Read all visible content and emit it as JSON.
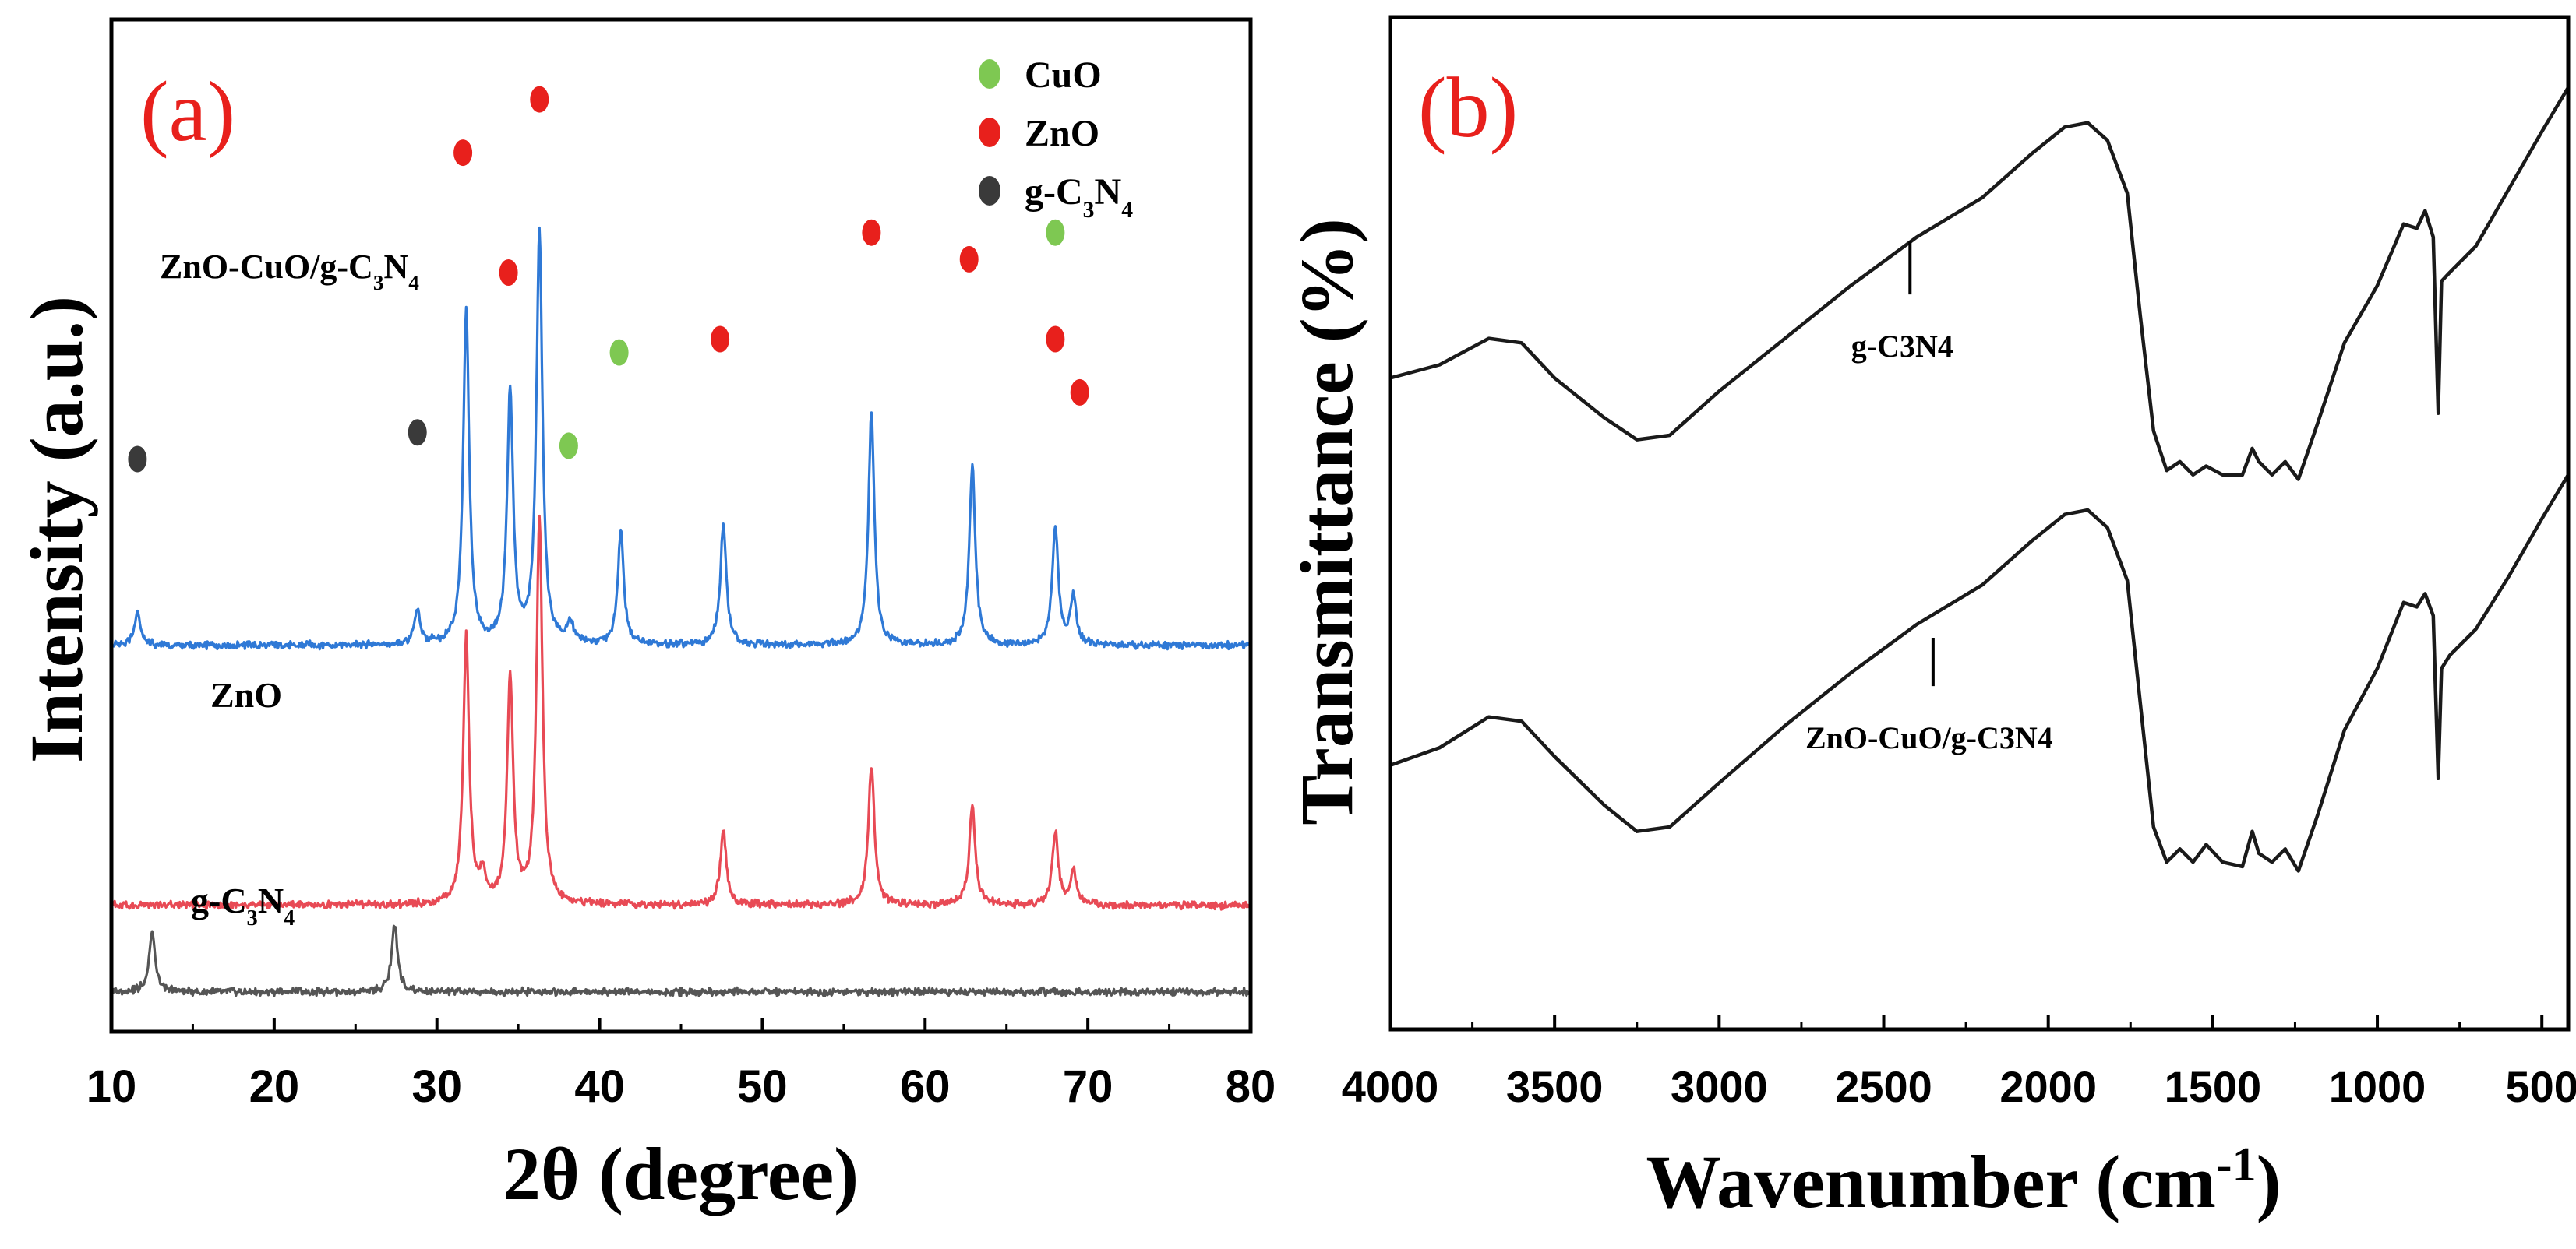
{
  "chart_data": [
    {
      "id": "a",
      "type": "line",
      "panel_label": "(a)",
      "xlabel_main": "2θ (degree)",
      "ylabel": "Intensity (a.u.)",
      "xlim": [
        10,
        80
      ],
      "xticks": [
        10,
        20,
        30,
        40,
        50,
        60,
        70,
        80
      ],
      "y_tick_labels_shown": false,
      "legend": {
        "position": "top-right",
        "entries": [
          {
            "label": "CuO",
            "color": "#7ec852"
          },
          {
            "label": "ZnO",
            "color": "#e8201c"
          },
          {
            "label": "g-C3N4",
            "color": "#3a3a3a",
            "label_main": "g-C",
            "sub1": "3",
            "mid": "N",
            "sub2": "4"
          }
        ]
      },
      "series": [
        {
          "name": "ZnO-CuO/g-C3N4",
          "label_parts": {
            "pre": "ZnO-CuO/g-C",
            "sub1": "3",
            "mid": "N",
            "sub2": "4"
          },
          "color": "#2f79d6",
          "baseline": 2.9,
          "peaks": [
            [
              11.6,
              0.25
            ],
            [
              28.8,
              0.25
            ],
            [
              31.8,
              2.5
            ],
            [
              34.5,
              1.9
            ],
            [
              36.3,
              3.1
            ],
            [
              38.2,
              0.15
            ],
            [
              41.3,
              0.85
            ],
            [
              47.6,
              0.9
            ],
            [
              56.7,
              1.75
            ],
            [
              62.9,
              1.35
            ],
            [
              68.0,
              0.9
            ],
            [
              69.1,
              0.35
            ]
          ],
          "markers": [
            {
              "x": 11.6,
              "y": 4.3,
              "phase": "g-C3N4"
            },
            {
              "x": 28.8,
              "y": 4.5,
              "phase": "g-C3N4"
            },
            {
              "x": 31.6,
              "y": 6.6,
              "phase": "ZnO"
            },
            {
              "x": 34.4,
              "y": 5.7,
              "phase": "ZnO"
            },
            {
              "x": 36.3,
              "y": 7.0,
              "phase": "ZnO"
            },
            {
              "x": 38.1,
              "y": 4.4,
              "phase": "CuO"
            },
            {
              "x": 41.2,
              "y": 5.1,
              "phase": "CuO"
            },
            {
              "x": 47.4,
              "y": 5.2,
              "phase": "ZnO"
            },
            {
              "x": 56.7,
              "y": 6.0,
              "phase": "ZnO"
            },
            {
              "x": 62.7,
              "y": 5.8,
              "phase": "ZnO"
            },
            {
              "x": 68.0,
              "y": 5.2,
              "phase": "ZnO"
            },
            {
              "x": 68.0,
              "y": 6.0,
              "phase": "CuO"
            },
            {
              "x": 69.5,
              "y": 4.8,
              "phase": "ZnO"
            }
          ]
        },
        {
          "name": "ZnO",
          "label_parts": {
            "pre": "ZnO",
            "sub1": "",
            "mid": "",
            "sub2": ""
          },
          "color": "#e84a55",
          "baseline": 0.95,
          "peaks": [
            [
              31.8,
              2.0
            ],
            [
              32.8,
              0.2
            ],
            [
              34.5,
              1.7
            ],
            [
              36.3,
              2.9
            ],
            [
              47.6,
              0.55
            ],
            [
              56.7,
              1.05
            ],
            [
              62.9,
              0.75
            ],
            [
              68.0,
              0.55
            ],
            [
              69.1,
              0.25
            ]
          ]
        },
        {
          "name": "g-C3N4",
          "label_parts": {
            "pre": "g-C",
            "sub1": "3",
            "mid": "N",
            "sub2": "4"
          },
          "color": "#555555",
          "baseline": 0.3,
          "peaks": [
            [
              12.5,
              0.45
            ],
            [
              27.4,
              0.5
            ]
          ]
        }
      ]
    },
    {
      "id": "b",
      "type": "line",
      "panel_label": "(b)",
      "xlabel_main": "Wavenumber (cm",
      "xlabel_sup": "-1",
      "xlabel_end": ")",
      "ylabel": "Transmittance (%)",
      "xlim": [
        4000,
        420
      ],
      "xticks": [
        4000,
        3500,
        3000,
        2500,
        2000,
        1500,
        1000,
        500
      ],
      "y_tick_labels_shown": false,
      "series": [
        {
          "name": "g-C3N4",
          "label": "g-C3N4",
          "color": "#1a1a1a",
          "points": [
            [
              4000,
              5.9
            ],
            [
              3850,
              6.05
            ],
            [
              3700,
              6.35
            ],
            [
              3600,
              6.3
            ],
            [
              3500,
              5.9
            ],
            [
              3350,
              5.45
            ],
            [
              3250,
              5.2
            ],
            [
              3150,
              5.25
            ],
            [
              3000,
              5.75
            ],
            [
              2800,
              6.35
            ],
            [
              2600,
              6.95
            ],
            [
              2400,
              7.5
            ],
            [
              2200,
              7.95
            ],
            [
              2050,
              8.45
            ],
            [
              1950,
              8.75
            ],
            [
              1880,
              8.8
            ],
            [
              1820,
              8.6
            ],
            [
              1760,
              8.0
            ],
            [
              1720,
              6.6
            ],
            [
              1680,
              5.3
            ],
            [
              1640,
              4.85
            ],
            [
              1600,
              4.95
            ],
            [
              1560,
              4.8
            ],
            [
              1520,
              4.9
            ],
            [
              1470,
              4.8
            ],
            [
              1410,
              4.8
            ],
            [
              1380,
              5.1
            ],
            [
              1360,
              4.95
            ],
            [
              1320,
              4.8
            ],
            [
              1280,
              4.95
            ],
            [
              1240,
              4.75
            ],
            [
              1180,
              5.4
            ],
            [
              1100,
              6.3
            ],
            [
              1000,
              6.95
            ],
            [
              920,
              7.65
            ],
            [
              880,
              7.6
            ],
            [
              855,
              7.8
            ],
            [
              830,
              7.5
            ],
            [
              815,
              5.5
            ],
            [
              805,
              7.0
            ],
            [
              780,
              7.1
            ],
            [
              700,
              7.4
            ],
            [
              600,
              8.05
            ],
            [
              500,
              8.7
            ],
            [
              420,
              9.2
            ]
          ],
          "annotation": {
            "x": 2420,
            "y_top": 7.45,
            "y_bottom": 6.85
          }
        },
        {
          "name": "ZnO-CuO/g-C3N4",
          "label": "ZnO-CuO/g-C3N4",
          "color": "#1a1a1a",
          "points": [
            [
              4000,
              1.5
            ],
            [
              3850,
              1.7
            ],
            [
              3700,
              2.05
            ],
            [
              3600,
              2.0
            ],
            [
              3500,
              1.6
            ],
            [
              3350,
              1.05
            ],
            [
              3250,
              0.75
            ],
            [
              3150,
              0.8
            ],
            [
              3000,
              1.3
            ],
            [
              2800,
              1.95
            ],
            [
              2600,
              2.55
            ],
            [
              2400,
              3.1
            ],
            [
              2200,
              3.55
            ],
            [
              2050,
              4.05
            ],
            [
              1950,
              4.35
            ],
            [
              1880,
              4.4
            ],
            [
              1820,
              4.2
            ],
            [
              1760,
              3.6
            ],
            [
              1720,
              2.2
            ],
            [
              1680,
              0.8
            ],
            [
              1640,
              0.4
            ],
            [
              1600,
              0.55
            ],
            [
              1560,
              0.4
            ],
            [
              1520,
              0.6
            ],
            [
              1470,
              0.4
            ],
            [
              1410,
              0.35
            ],
            [
              1380,
              0.75
            ],
            [
              1360,
              0.5
            ],
            [
              1320,
              0.4
            ],
            [
              1280,
              0.55
            ],
            [
              1240,
              0.3
            ],
            [
              1180,
              0.95
            ],
            [
              1100,
              1.9
            ],
            [
              1000,
              2.6
            ],
            [
              920,
              3.35
            ],
            [
              880,
              3.3
            ],
            [
              855,
              3.45
            ],
            [
              830,
              3.2
            ],
            [
              815,
              1.35
            ],
            [
              805,
              2.6
            ],
            [
              780,
              2.75
            ],
            [
              700,
              3.05
            ],
            [
              600,
              3.65
            ],
            [
              500,
              4.3
            ],
            [
              420,
              4.8
            ]
          ],
          "annotation": {
            "x": 2350,
            "y_top": 2.95,
            "y_bottom": 2.4
          }
        }
      ]
    }
  ]
}
